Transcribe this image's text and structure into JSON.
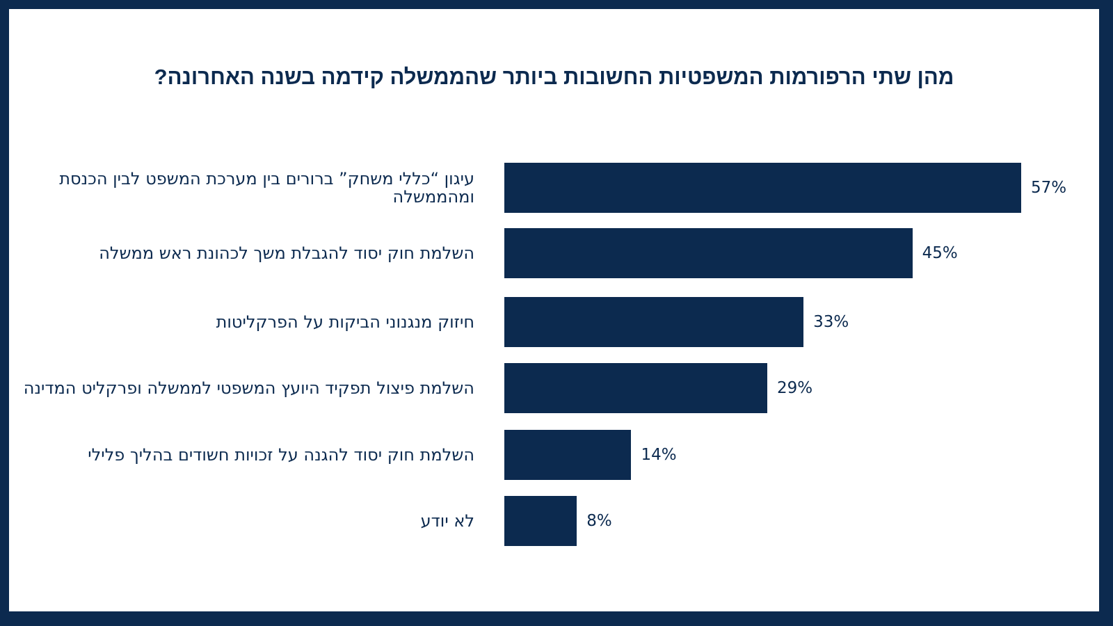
{
  "chart_data": {
    "type": "bar",
    "orientation": "horizontal",
    "title": "מהן שתי הרפורמות המשפטיות החשובות ביותר שהממשלה קידמה בשנה האחרונה?",
    "categories": [
      "עיגון “כללי משחק” ברורים בין מערכת המשפט לבין הכנסת ומהממשלה",
      "השלמת חוק יסוד להגבלת משך לכהונת ראש ממשלה",
      "חיזוק מנגנוני הביקות על הפרקליטות",
      "השלמת פיצול תפקיד היועץ המשפטי לממשלה ופרקליט המדינה",
      "השלמת חוק יסוד להגנה על זכויות חשודים בהליך פלילי",
      "לא יודע"
    ],
    "values": [
      57,
      45,
      33,
      29,
      14,
      8
    ],
    "value_labels": [
      "57%",
      "45%",
      "33%",
      "29%",
      "14%",
      "8%"
    ],
    "xlabel": "",
    "ylabel": "",
    "xlim": [
      0,
      60
    ],
    "grid": false,
    "bar_color": "#0c2a4f"
  }
}
